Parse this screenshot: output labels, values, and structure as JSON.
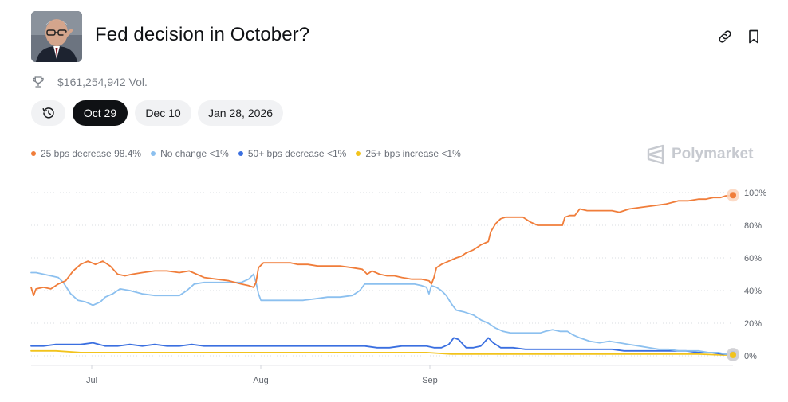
{
  "header": {
    "title": "Fed decision in October?",
    "volume": "$161,254,942 Vol."
  },
  "date_tabs": [
    {
      "label": "Oct 29",
      "active": true
    },
    {
      "label": "Dec 10",
      "active": false
    },
    {
      "label": "Jan 28, 2026",
      "active": false
    }
  ],
  "brand": {
    "name": "Polymarket"
  },
  "colors": {
    "orange": "#f07d3a",
    "light_blue": "#8cc0ef",
    "blue": "#3a6fe0",
    "yellow": "#f2c31c"
  },
  "icons": {
    "history": "history-clock-icon",
    "link": "link-icon",
    "bookmark": "bookmark-icon",
    "trophy": "trophy-icon",
    "brand": "polymarket-logo-icon"
  },
  "chart_data": {
    "type": "line",
    "x_ticks": [
      "Jul",
      "Aug",
      "Sep"
    ],
    "y_ticks": [
      "100%",
      "80%",
      "60%",
      "40%",
      "20%",
      "0%"
    ],
    "ylim": [
      0,
      100
    ],
    "grid": "horizontal dotted",
    "legend": "top-left",
    "series": [
      {
        "name": "25 bps decrease",
        "value_label": "98.4%",
        "color": "#f07d3a",
        "points": [
          [
            0,
            42
          ],
          [
            1,
            37
          ],
          [
            2,
            41
          ],
          [
            5,
            42
          ],
          [
            8,
            41
          ],
          [
            11,
            44
          ],
          [
            14,
            46
          ],
          [
            17,
            52
          ],
          [
            20,
            56
          ],
          [
            23,
            58
          ],
          [
            26,
            56
          ],
          [
            29,
            58
          ],
          [
            32,
            55
          ],
          [
            35,
            50
          ],
          [
            38,
            49
          ],
          [
            41,
            50
          ],
          [
            45,
            51
          ],
          [
            50,
            52
          ],
          [
            55,
            52
          ],
          [
            60,
            51
          ],
          [
            64,
            52
          ],
          [
            67,
            50
          ],
          [
            70,
            48
          ],
          [
            75,
            47
          ],
          [
            80,
            46
          ],
          [
            85,
            44
          ],
          [
            88,
            43
          ],
          [
            90,
            42
          ],
          [
            91,
            45
          ],
          [
            92,
            54
          ],
          [
            94,
            57
          ],
          [
            98,
            57
          ],
          [
            102,
            57
          ],
          [
            105,
            57
          ],
          [
            108,
            56
          ],
          [
            112,
            56
          ],
          [
            116,
            55
          ],
          [
            120,
            55
          ],
          [
            125,
            55
          ],
          [
            130,
            54
          ],
          [
            134,
            53
          ],
          [
            136,
            50
          ],
          [
            138,
            52
          ],
          [
            141,
            50
          ],
          [
            144,
            49
          ],
          [
            147,
            49
          ],
          [
            150,
            48
          ],
          [
            154,
            47
          ],
          [
            158,
            47
          ],
          [
            161,
            46
          ],
          [
            162,
            44
          ],
          [
            163,
            48
          ],
          [
            164,
            54
          ],
          [
            166,
            56
          ],
          [
            169,
            58
          ],
          [
            172,
            60
          ],
          [
            174,
            61
          ],
          [
            176,
            63
          ],
          [
            179,
            65
          ],
          [
            182,
            68
          ],
          [
            185,
            70
          ],
          [
            186,
            76
          ],
          [
            188,
            81
          ],
          [
            190,
            84
          ],
          [
            192,
            85
          ],
          [
            195,
            85
          ],
          [
            199,
            85
          ],
          [
            202,
            82
          ],
          [
            205,
            80
          ],
          [
            209,
            80
          ],
          [
            213,
            80
          ],
          [
            215,
            80
          ],
          [
            216,
            85
          ],
          [
            218,
            86
          ],
          [
            220,
            86
          ],
          [
            222,
            90
          ],
          [
            225,
            89
          ],
          [
            230,
            89
          ],
          [
            235,
            89
          ],
          [
            238,
            88
          ],
          [
            242,
            90
          ],
          [
            247,
            91
          ],
          [
            252,
            92
          ],
          [
            257,
            93
          ],
          [
            262,
            95
          ],
          [
            266,
            95
          ],
          [
            270,
            96
          ],
          [
            273,
            96
          ],
          [
            276,
            97
          ],
          [
            279,
            97
          ],
          [
            281,
            98
          ],
          [
            284,
            98.4
          ]
        ]
      },
      {
        "name": "No change",
        "value_label": "<1%",
        "color": "#8cc0ef",
        "points": [
          [
            0,
            51
          ],
          [
            2,
            51
          ],
          [
            5,
            50
          ],
          [
            8,
            49
          ],
          [
            11,
            48
          ],
          [
            13,
            45
          ],
          [
            16,
            38
          ],
          [
            19,
            34
          ],
          [
            22,
            33
          ],
          [
            25,
            31
          ],
          [
            28,
            33
          ],
          [
            30,
            36
          ],
          [
            33,
            38
          ],
          [
            36,
            41
          ],
          [
            40,
            40
          ],
          [
            45,
            38
          ],
          [
            50,
            37
          ],
          [
            55,
            37
          ],
          [
            60,
            37
          ],
          [
            63,
            40
          ],
          [
            66,
            44
          ],
          [
            70,
            45
          ],
          [
            75,
            45
          ],
          [
            80,
            45
          ],
          [
            85,
            45
          ],
          [
            88,
            47
          ],
          [
            90,
            50
          ],
          [
            91,
            45
          ],
          [
            92,
            38
          ],
          [
            93,
            34
          ],
          [
            95,
            34
          ],
          [
            100,
            34
          ],
          [
            105,
            34
          ],
          [
            110,
            34
          ],
          [
            115,
            35
          ],
          [
            120,
            36
          ],
          [
            125,
            36
          ],
          [
            130,
            37
          ],
          [
            133,
            40
          ],
          [
            135,
            44
          ],
          [
            140,
            44
          ],
          [
            145,
            44
          ],
          [
            150,
            44
          ],
          [
            155,
            44
          ],
          [
            158,
            43
          ],
          [
            160,
            42
          ],
          [
            161,
            38
          ],
          [
            162,
            43
          ],
          [
            164,
            42
          ],
          [
            166,
            40
          ],
          [
            168,
            37
          ],
          [
            170,
            32
          ],
          [
            172,
            28
          ],
          [
            175,
            27
          ],
          [
            179,
            25
          ],
          [
            182,
            22
          ],
          [
            185,
            20
          ],
          [
            188,
            17
          ],
          [
            191,
            15
          ],
          [
            194,
            14
          ],
          [
            197,
            14
          ],
          [
            200,
            14
          ],
          [
            203,
            14
          ],
          [
            206,
            14
          ],
          [
            208,
            15
          ],
          [
            211,
            16
          ],
          [
            214,
            15
          ],
          [
            217,
            15
          ],
          [
            219,
            13
          ],
          [
            222,
            11
          ],
          [
            226,
            9
          ],
          [
            230,
            8
          ],
          [
            234,
            9
          ],
          [
            238,
            8
          ],
          [
            242,
            7
          ],
          [
            246,
            6
          ],
          [
            250,
            5
          ],
          [
            254,
            4
          ],
          [
            258,
            4
          ],
          [
            262,
            3
          ],
          [
            266,
            3
          ],
          [
            270,
            3
          ],
          [
            274,
            2
          ],
          [
            278,
            2
          ],
          [
            281,
            1
          ],
          [
            284,
            1
          ]
        ]
      },
      {
        "name": "50+ bps decrease",
        "value_label": "<1%",
        "color": "#3a6fe0",
        "points": [
          [
            0,
            6
          ],
          [
            5,
            6
          ],
          [
            10,
            7
          ],
          [
            15,
            7
          ],
          [
            20,
            7
          ],
          [
            25,
            8
          ],
          [
            30,
            6
          ],
          [
            35,
            6
          ],
          [
            40,
            7
          ],
          [
            45,
            6
          ],
          [
            50,
            7
          ],
          [
            55,
            6
          ],
          [
            60,
            6
          ],
          [
            65,
            7
          ],
          [
            70,
            6
          ],
          [
            75,
            6
          ],
          [
            80,
            6
          ],
          [
            85,
            6
          ],
          [
            90,
            6
          ],
          [
            95,
            6
          ],
          [
            100,
            6
          ],
          [
            105,
            6
          ],
          [
            110,
            6
          ],
          [
            115,
            6
          ],
          [
            120,
            6
          ],
          [
            125,
            6
          ],
          [
            130,
            6
          ],
          [
            135,
            6
          ],
          [
            140,
            5
          ],
          [
            145,
            5
          ],
          [
            150,
            6
          ],
          [
            155,
            6
          ],
          [
            160,
            6
          ],
          [
            163,
            5
          ],
          [
            166,
            5
          ],
          [
            169,
            7
          ],
          [
            171,
            11
          ],
          [
            173,
            10
          ],
          [
            176,
            5
          ],
          [
            179,
            5
          ],
          [
            182,
            6
          ],
          [
            185,
            11
          ],
          [
            187,
            8
          ],
          [
            190,
            5
          ],
          [
            195,
            5
          ],
          [
            200,
            4
          ],
          [
            205,
            4
          ],
          [
            210,
            4
          ],
          [
            215,
            4
          ],
          [
            220,
            4
          ],
          [
            225,
            4
          ],
          [
            230,
            4
          ],
          [
            235,
            4
          ],
          [
            240,
            3
          ],
          [
            245,
            3
          ],
          [
            250,
            3
          ],
          [
            255,
            3
          ],
          [
            260,
            3
          ],
          [
            265,
            3
          ],
          [
            270,
            2
          ],
          [
            275,
            2
          ],
          [
            280,
            1
          ],
          [
            284,
            1
          ]
        ]
      },
      {
        "name": "25+ bps increase",
        "value_label": "<1%",
        "color": "#f2c31c",
        "points": [
          [
            0,
            3
          ],
          [
            10,
            3
          ],
          [
            20,
            2
          ],
          [
            30,
            2
          ],
          [
            40,
            2
          ],
          [
            50,
            2
          ],
          [
            60,
            2
          ],
          [
            70,
            2
          ],
          [
            80,
            2
          ],
          [
            90,
            2
          ],
          [
            100,
            2
          ],
          [
            110,
            2
          ],
          [
            120,
            2
          ],
          [
            130,
            2
          ],
          [
            140,
            2
          ],
          [
            150,
            2
          ],
          [
            160,
            2
          ],
          [
            170,
            1
          ],
          [
            180,
            1
          ],
          [
            190,
            1
          ],
          [
            200,
            1
          ],
          [
            210,
            1
          ],
          [
            220,
            1
          ],
          [
            230,
            1
          ],
          [
            240,
            1
          ],
          [
            250,
            1
          ],
          [
            260,
            1
          ],
          [
            270,
            1
          ],
          [
            280,
            0.5
          ],
          [
            284,
            0.5
          ]
        ]
      }
    ]
  }
}
